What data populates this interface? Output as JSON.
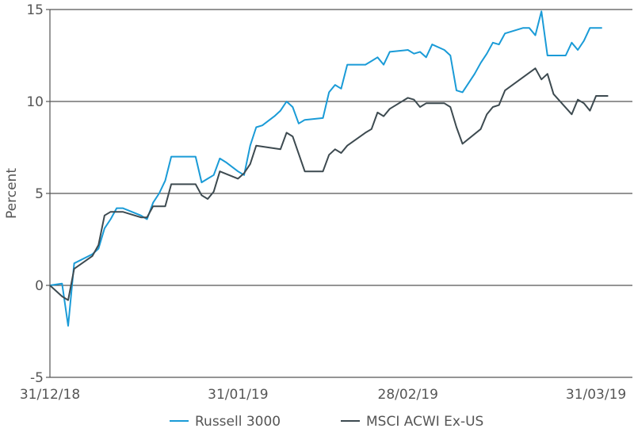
{
  "chart_data": {
    "type": "line",
    "title": "",
    "xlabel": "",
    "ylabel": "Percent",
    "ylim": [
      -5,
      15
    ],
    "yticks": [
      -5,
      0,
      5,
      10,
      15
    ],
    "xlim": [
      "2018-12-31",
      "2019-04-06"
    ],
    "xticks": [
      "31/12/18",
      "31/01/19",
      "28/02/19",
      "31/03/19"
    ],
    "grid": "horizontal",
    "legend_position": "bottom",
    "colors": {
      "axis": "#555555",
      "grid": "#555555"
    },
    "series": [
      {
        "name": "Russell 3000",
        "color": "#1a9bd7",
        "points": [
          [
            "2018-12-31",
            0.0
          ],
          [
            "2019-01-02",
            0.1
          ],
          [
            "2019-01-03",
            -2.2
          ],
          [
            "2019-01-04",
            1.2
          ],
          [
            "2019-01-07",
            1.7
          ],
          [
            "2019-01-08",
            2.0
          ],
          [
            "2019-01-09",
            3.1
          ],
          [
            "2019-01-10",
            3.6
          ],
          [
            "2019-01-11",
            4.2
          ],
          [
            "2019-01-12",
            4.2
          ],
          [
            "2019-01-15",
            3.8
          ],
          [
            "2019-01-16",
            3.6
          ],
          [
            "2019-01-17",
            4.5
          ],
          [
            "2019-01-18",
            5.0
          ],
          [
            "2019-01-19",
            5.7
          ],
          [
            "2019-01-20",
            7.0
          ],
          [
            "2019-01-22",
            7.0
          ],
          [
            "2019-01-24",
            7.0
          ],
          [
            "2019-01-25",
            5.6
          ],
          [
            "2019-01-26",
            5.8
          ],
          [
            "2019-01-27",
            6.0
          ],
          [
            "2019-01-28",
            6.9
          ],
          [
            "2019-01-29",
            6.7
          ],
          [
            "2019-01-31",
            6.2
          ],
          [
            "2019-02-01",
            6.0
          ],
          [
            "2019-02-02",
            7.6
          ],
          [
            "2019-02-03",
            8.6
          ],
          [
            "2019-02-04",
            8.7
          ],
          [
            "2019-02-06",
            9.2
          ],
          [
            "2019-02-07",
            9.5
          ],
          [
            "2019-02-08",
            10.0
          ],
          [
            "2019-02-09",
            9.7
          ],
          [
            "2019-02-10",
            8.8
          ],
          [
            "2019-02-11",
            9.0
          ],
          [
            "2019-02-14",
            9.1
          ],
          [
            "2019-02-15",
            10.5
          ],
          [
            "2019-02-16",
            10.9
          ],
          [
            "2019-02-17",
            10.7
          ],
          [
            "2019-02-18",
            12.0
          ],
          [
            "2019-02-21",
            12.0
          ],
          [
            "2019-02-22",
            12.2
          ],
          [
            "2019-02-23",
            12.4
          ],
          [
            "2019-02-24",
            12.0
          ],
          [
            "2019-02-25",
            12.7
          ],
          [
            "2019-02-28",
            12.8
          ],
          [
            "2019-03-01",
            12.6
          ],
          [
            "2019-03-02",
            12.7
          ],
          [
            "2019-03-03",
            12.4
          ],
          [
            "2019-03-04",
            13.1
          ],
          [
            "2019-03-06",
            12.8
          ],
          [
            "2019-03-07",
            12.5
          ],
          [
            "2019-03-08",
            10.6
          ],
          [
            "2019-03-09",
            10.5
          ],
          [
            "2019-03-11",
            11.5
          ],
          [
            "2019-03-12",
            12.1
          ],
          [
            "2019-03-13",
            12.6
          ],
          [
            "2019-03-14",
            13.2
          ],
          [
            "2019-03-15",
            13.1
          ],
          [
            "2019-03-16",
            13.7
          ],
          [
            "2019-03-19",
            14.0
          ],
          [
            "2019-03-20",
            14.0
          ],
          [
            "2019-03-21",
            13.6
          ],
          [
            "2019-03-22",
            14.9
          ],
          [
            "2019-03-23",
            12.5
          ],
          [
            "2019-03-26",
            12.5
          ],
          [
            "2019-03-27",
            13.2
          ],
          [
            "2019-03-28",
            12.8
          ],
          [
            "2019-03-29",
            13.3
          ],
          [
            "2019-03-30",
            14.0
          ],
          [
            "2019-04-01",
            14.0
          ]
        ]
      },
      {
        "name": "MSCI ACWI Ex-US",
        "color": "#3d4a50",
        "points": [
          [
            "2018-12-31",
            0.0
          ],
          [
            "2019-01-02",
            -0.6
          ],
          [
            "2019-01-03",
            -0.8
          ],
          [
            "2019-01-04",
            0.9
          ],
          [
            "2019-01-07",
            1.6
          ],
          [
            "2019-01-08",
            2.2
          ],
          [
            "2019-01-09",
            3.8
          ],
          [
            "2019-01-10",
            4.0
          ],
          [
            "2019-01-12",
            4.0
          ],
          [
            "2019-01-15",
            3.7
          ],
          [
            "2019-01-16",
            3.7
          ],
          [
            "2019-01-17",
            4.3
          ],
          [
            "2019-01-19",
            4.3
          ],
          [
            "2019-01-20",
            5.5
          ],
          [
            "2019-01-24",
            5.5
          ],
          [
            "2019-01-25",
            4.9
          ],
          [
            "2019-01-26",
            4.7
          ],
          [
            "2019-01-27",
            5.1
          ],
          [
            "2019-01-28",
            6.2
          ],
          [
            "2019-01-31",
            5.8
          ],
          [
            "2019-02-01",
            6.1
          ],
          [
            "2019-02-02",
            6.6
          ],
          [
            "2019-02-03",
            7.6
          ],
          [
            "2019-02-07",
            7.4
          ],
          [
            "2019-02-08",
            8.3
          ],
          [
            "2019-02-09",
            8.1
          ],
          [
            "2019-02-11",
            6.2
          ],
          [
            "2019-02-14",
            6.2
          ],
          [
            "2019-02-15",
            7.1
          ],
          [
            "2019-02-16",
            7.4
          ],
          [
            "2019-02-17",
            7.2
          ],
          [
            "2019-02-18",
            7.6
          ],
          [
            "2019-02-21",
            8.3
          ],
          [
            "2019-02-22",
            8.5
          ],
          [
            "2019-02-23",
            9.4
          ],
          [
            "2019-02-24",
            9.2
          ],
          [
            "2019-02-25",
            9.6
          ],
          [
            "2019-02-28",
            10.2
          ],
          [
            "2019-03-01",
            10.1
          ],
          [
            "2019-03-02",
            9.7
          ],
          [
            "2019-03-03",
            9.9
          ],
          [
            "2019-03-06",
            9.9
          ],
          [
            "2019-03-07",
            9.7
          ],
          [
            "2019-03-08",
            8.6
          ],
          [
            "2019-03-09",
            7.7
          ],
          [
            "2019-03-12",
            8.5
          ],
          [
            "2019-03-13",
            9.3
          ],
          [
            "2019-03-14",
            9.7
          ],
          [
            "2019-03-15",
            9.8
          ],
          [
            "2019-03-16",
            10.6
          ],
          [
            "2019-03-21",
            11.8
          ],
          [
            "2019-03-22",
            11.2
          ],
          [
            "2019-03-23",
            11.5
          ],
          [
            "2019-03-24",
            10.4
          ],
          [
            "2019-03-27",
            9.3
          ],
          [
            "2019-03-28",
            10.1
          ],
          [
            "2019-03-29",
            9.9
          ],
          [
            "2019-03-30",
            9.5
          ],
          [
            "2019-03-31",
            10.3
          ],
          [
            "2019-04-02",
            10.3
          ]
        ]
      }
    ]
  }
}
